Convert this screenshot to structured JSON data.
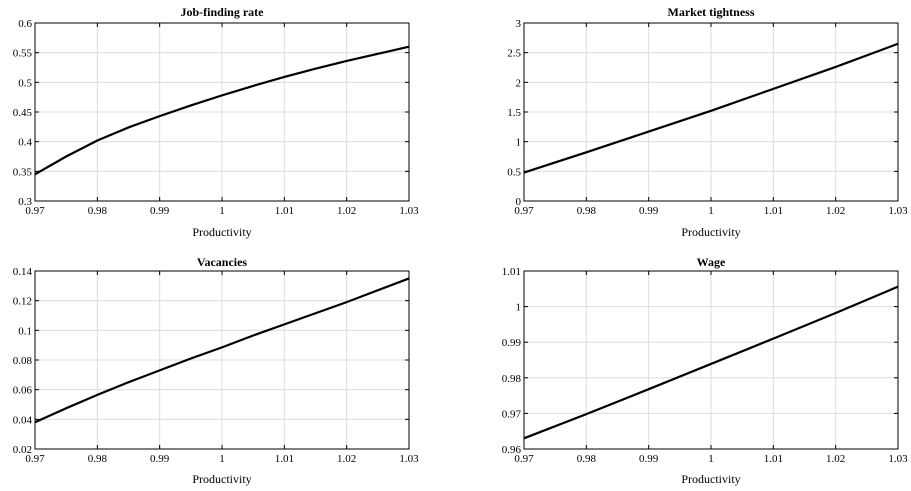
{
  "chart_data": [
    {
      "type": "line",
      "title": "Job-finding rate",
      "xlabel": "Productivity",
      "ylabel": "",
      "xlim": [
        0.97,
        1.03
      ],
      "ylim": [
        0.3,
        0.6
      ],
      "xticks": [
        "0.97",
        "0.98",
        "0.99",
        "1",
        "1.01",
        "1.02",
        "1.03"
      ],
      "yticks": [
        "0.3",
        "0.35",
        "0.4",
        "0.45",
        "0.5",
        "0.55",
        "0.6"
      ],
      "grid": true,
      "series": [
        {
          "x": [
            0.97,
            0.975,
            0.98,
            0.985,
            0.99,
            0.995,
            1.0,
            1.005,
            1.01,
            1.015,
            1.02,
            1.025,
            1.03
          ],
          "y": [
            0.345,
            0.375,
            0.402,
            0.424,
            0.443,
            0.461,
            0.478,
            0.494,
            0.509,
            0.523,
            0.536,
            0.548,
            0.56
          ]
        }
      ]
    },
    {
      "type": "line",
      "title": "Market tightness",
      "xlabel": "Productivity",
      "ylabel": "",
      "xlim": [
        0.97,
        1.03
      ],
      "ylim": [
        0,
        3
      ],
      "xticks": [
        "0.97",
        "0.98",
        "0.99",
        "1",
        "1.01",
        "1.02",
        "1.03"
      ],
      "yticks": [
        "0",
        "0.5",
        "1",
        "1.5",
        "2",
        "2.5",
        "3"
      ],
      "grid": true,
      "series": [
        {
          "x": [
            0.97,
            0.98,
            0.99,
            1.0,
            1.01,
            1.02,
            1.03
          ],
          "y": [
            0.48,
            0.82,
            1.17,
            1.52,
            1.89,
            2.26,
            2.65
          ]
        }
      ]
    },
    {
      "type": "line",
      "title": "Vacancies",
      "xlabel": "Productivity",
      "ylabel": "",
      "xlim": [
        0.97,
        1.03
      ],
      "ylim": [
        0.02,
        0.14
      ],
      "xticks": [
        "0.97",
        "0.98",
        "0.99",
        "1",
        "1.01",
        "1.02",
        "1.03"
      ],
      "yticks": [
        "0.02",
        "0.04",
        "0.06",
        "0.08",
        "0.1",
        "0.12",
        "0.14"
      ],
      "grid": true,
      "series": [
        {
          "x": [
            0.97,
            0.975,
            0.98,
            0.985,
            0.99,
            0.995,
            1.0,
            1.005,
            1.01,
            1.015,
            1.02,
            1.025,
            1.03
          ],
          "y": [
            0.038,
            0.0475,
            0.0565,
            0.065,
            0.073,
            0.081,
            0.0885,
            0.0965,
            0.104,
            0.1115,
            0.119,
            0.127,
            0.135
          ]
        }
      ]
    },
    {
      "type": "line",
      "title": "Wage",
      "xlabel": "Productivity",
      "ylabel": "",
      "xlim": [
        0.97,
        1.03
      ],
      "ylim": [
        0.96,
        1.01
      ],
      "xticks": [
        "0.97",
        "0.98",
        "0.99",
        "1",
        "1.01",
        "1.02",
        "1.03"
      ],
      "yticks": [
        "0.96",
        "0.97",
        "0.98",
        "0.99",
        "1",
        "1.01"
      ],
      "grid": true,
      "series": [
        {
          "x": [
            0.97,
            0.98,
            0.99,
            1.0,
            1.01,
            1.02,
            1.03
          ],
          "y": [
            0.963,
            0.9698,
            0.9768,
            0.9839,
            0.991,
            0.9982,
            1.0056
          ]
        }
      ]
    }
  ]
}
